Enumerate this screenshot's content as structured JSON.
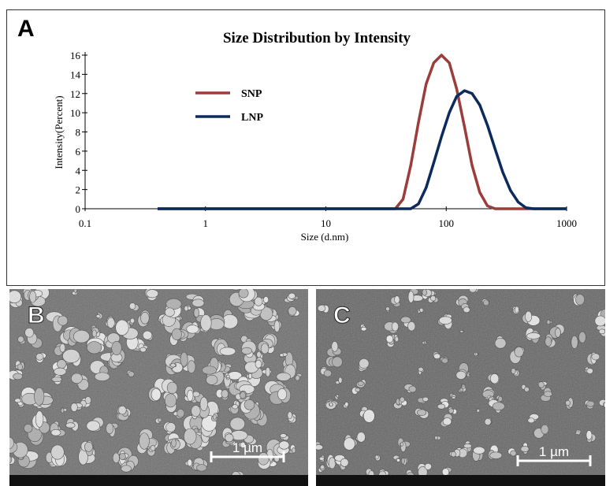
{
  "chart_data": {
    "type": "line",
    "title": "Size Distribution by Intensity",
    "x_label": "Size (d.nm)",
    "y_label": "Intensity(Percent)",
    "x_scale": "log",
    "x": [
      0.4,
      1,
      10,
      37.8,
      43.8,
      50.7,
      58.8,
      68.1,
      78.8,
      91.3,
      106,
      122,
      142,
      164,
      190,
      220,
      255,
      295,
      342,
      396,
      459,
      531,
      1000
    ],
    "series": [
      {
        "name": "SNP",
        "color": "#9b3d3a",
        "values": [
          0,
          0,
          0,
          0,
          1,
          4.5,
          9,
          13,
          15.2,
          16,
          15.2,
          12.5,
          8.5,
          4.5,
          1.7,
          0.3,
          0,
          0,
          0,
          0,
          0,
          0,
          0
        ]
      },
      {
        "name": "LNP",
        "color": "#0d2a5c",
        "values": [
          0,
          0,
          0,
          0,
          0,
          0,
          0.5,
          2.2,
          4.8,
          7.5,
          10,
          11.7,
          12.3,
          12,
          10.8,
          8.7,
          6.2,
          3.8,
          1.9,
          0.7,
          0.1,
          0,
          0
        ]
      }
    ],
    "xlim": [
      0.1,
      1000
    ],
    "xticks": [
      0.1,
      1,
      10,
      100,
      1000
    ],
    "ylim": [
      0,
      16
    ],
    "yticks": [
      0,
      2,
      4,
      6,
      8,
      10,
      12,
      14,
      16
    ]
  },
  "panel_labels": [
    "A",
    "B",
    "C"
  ],
  "scale_bars": [
    "1 µm",
    "1 µm"
  ]
}
